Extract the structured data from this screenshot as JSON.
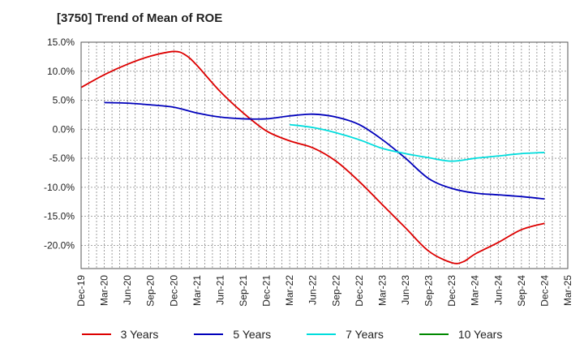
{
  "chart_data": {
    "type": "line",
    "title": "[3750]  Trend of Mean of ROE",
    "xlabel": "",
    "ylabel": "",
    "ylim": [
      -24.0,
      15.0
    ],
    "grid": true,
    "legend_position": "bottom",
    "x_tick_labels": [
      "Dec-19",
      "Mar-20",
      "Jun-20",
      "Sep-20",
      "Dec-20",
      "Mar-21",
      "Jun-21",
      "Sep-21",
      "Dec-21",
      "Mar-22",
      "Jun-22",
      "Sep-22",
      "Dec-22",
      "Mar-23",
      "Jun-23",
      "Sep-23",
      "Dec-23",
      "Mar-24",
      "Jun-24",
      "Sep-24",
      "Dec-24",
      "Mar-25"
    ],
    "y_ticks": [
      15,
      10,
      5,
      0,
      -5,
      -10,
      -15,
      -20
    ],
    "y_tick_labels": [
      "15.0%",
      "10.0%",
      "5.0%",
      "0.0%",
      "-5.0%",
      "-10.0%",
      "-15.0%",
      "-20.0%"
    ],
    "series": [
      {
        "name": "3 Years",
        "color": "#dd0000",
        "points": [
          [
            0,
            7.2
          ],
          [
            1,
            9.4
          ],
          [
            2,
            11.2
          ],
          [
            3,
            12.6
          ],
          [
            4,
            13.4
          ],
          [
            4.5,
            12.8
          ],
          [
            5,
            11.0
          ],
          [
            6,
            6.5
          ],
          [
            7,
            2.8
          ],
          [
            8,
            -0.3
          ],
          [
            9,
            -2.0
          ],
          [
            10,
            -3.2
          ],
          [
            11,
            -5.5
          ],
          [
            12,
            -9.0
          ],
          [
            13,
            -13.0
          ],
          [
            14,
            -17.0
          ],
          [
            15,
            -21.0
          ],
          [
            16,
            -23.0
          ],
          [
            16.5,
            -22.8
          ],
          [
            17,
            -21.5
          ],
          [
            18,
            -19.5
          ],
          [
            19,
            -17.3
          ],
          [
            20,
            -16.2
          ]
        ]
      },
      {
        "name": "5 Years",
        "color": "#0000bb",
        "points": [
          [
            1,
            4.6
          ],
          [
            2,
            4.5
          ],
          [
            3,
            4.2
          ],
          [
            4,
            3.8
          ],
          [
            5,
            2.8
          ],
          [
            6,
            2.1
          ],
          [
            7,
            1.8
          ],
          [
            8,
            1.8
          ],
          [
            9,
            2.3
          ],
          [
            10,
            2.6
          ],
          [
            11,
            2.1
          ],
          [
            12,
            0.8
          ],
          [
            13,
            -1.8
          ],
          [
            14,
            -5.0
          ],
          [
            15,
            -8.5
          ],
          [
            16,
            -10.2
          ],
          [
            17,
            -11.0
          ],
          [
            18,
            -11.3
          ],
          [
            19,
            -11.6
          ],
          [
            20,
            -12.0
          ]
        ]
      },
      {
        "name": "7 Years",
        "color": "#00dddd",
        "points": [
          [
            9,
            0.8
          ],
          [
            10,
            0.3
          ],
          [
            11,
            -0.6
          ],
          [
            12,
            -1.8
          ],
          [
            13,
            -3.3
          ],
          [
            14,
            -4.2
          ],
          [
            15,
            -4.9
          ],
          [
            16,
            -5.5
          ],
          [
            17,
            -5.0
          ],
          [
            18,
            -4.6
          ],
          [
            19,
            -4.2
          ],
          [
            20,
            -4.0
          ]
        ]
      },
      {
        "name": "10 Years",
        "color": "#008800",
        "points": []
      }
    ]
  }
}
